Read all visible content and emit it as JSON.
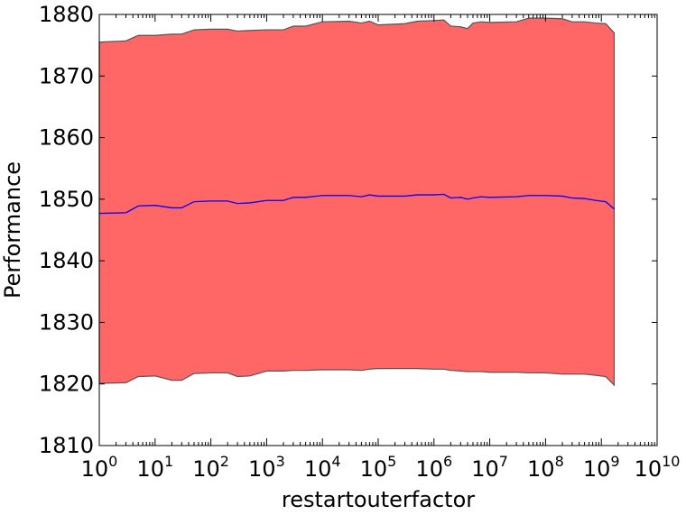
{
  "chart_data": {
    "type": "area",
    "xlabel": "restartouterfactor",
    "ylabel": "Performance",
    "x_scale": "log",
    "xlim": [
      1,
      10000000000
    ],
    "ylim": [
      1810,
      1880
    ],
    "x_ticks": [
      {
        "base": "10",
        "exp": "0"
      },
      {
        "base": "10",
        "exp": "1"
      },
      {
        "base": "10",
        "exp": "2"
      },
      {
        "base": "10",
        "exp": "3"
      },
      {
        "base": "10",
        "exp": "4"
      },
      {
        "base": "10",
        "exp": "5"
      },
      {
        "base": "10",
        "exp": "6"
      },
      {
        "base": "10",
        "exp": "7"
      },
      {
        "base": "10",
        "exp": "8"
      },
      {
        "base": "10",
        "exp": "9"
      },
      {
        "base": "10",
        "exp": "10"
      }
    ],
    "y_ticks": [
      "1810",
      "1820",
      "1830",
      "1840",
      "1850",
      "1860",
      "1870",
      "1880"
    ],
    "grid": false,
    "colors": {
      "band": "#ff6666",
      "band_edge": "#555555",
      "mean_line": "#0000ff"
    },
    "x": [
      1,
      3,
      5,
      10,
      20,
      30,
      50,
      100,
      200,
      300,
      500,
      1000,
      2000,
      3000,
      5000,
      10000,
      30000,
      50000,
      70000,
      100000,
      300000,
      500000,
      1000000,
      1500000,
      2000000,
      3000000,
      4000000,
      5000000,
      7000000,
      10000000,
      30000000,
      50000000,
      100000000,
      200000000,
      300000000,
      500000000,
      800000000,
      1200000000,
      1700000000
    ],
    "series": [
      {
        "role": "mean",
        "values": [
          1847.7,
          1847.8,
          1848.9,
          1849.0,
          1848.6,
          1848.6,
          1849.6,
          1849.7,
          1849.7,
          1849.3,
          1849.4,
          1849.8,
          1849.8,
          1850.3,
          1850.3,
          1850.6,
          1850.6,
          1850.4,
          1850.7,
          1850.5,
          1850.5,
          1850.7,
          1850.7,
          1850.8,
          1850.2,
          1850.3,
          1850.0,
          1850.2,
          1850.4,
          1850.3,
          1850.4,
          1850.6,
          1850.6,
          1850.5,
          1850.2,
          1850.1,
          1849.8,
          1849.6,
          1848.4
        ]
      },
      {
        "role": "upper",
        "values": [
          1875.5,
          1875.7,
          1876.6,
          1876.6,
          1876.8,
          1876.8,
          1877.5,
          1877.6,
          1877.6,
          1877.3,
          1877.4,
          1877.5,
          1877.5,
          1878.1,
          1878.1,
          1878.8,
          1878.9,
          1878.6,
          1878.9,
          1878.3,
          1878.5,
          1878.9,
          1879.0,
          1879.1,
          1878.1,
          1878.0,
          1877.7,
          1878.6,
          1878.8,
          1878.7,
          1878.8,
          1879.4,
          1879.4,
          1879.3,
          1878.8,
          1878.8,
          1878.6,
          1878.5,
          1877.0
        ]
      },
      {
        "role": "lower",
        "values": [
          1820.1,
          1820.2,
          1821.2,
          1821.3,
          1820.6,
          1820.6,
          1821.7,
          1821.8,
          1821.8,
          1821.2,
          1821.3,
          1822.1,
          1822.1,
          1822.2,
          1822.2,
          1822.3,
          1822.3,
          1822.2,
          1822.4,
          1822.5,
          1822.5,
          1822.5,
          1822.4,
          1822.4,
          1822.2,
          1822.1,
          1822.0,
          1822.0,
          1822.0,
          1821.9,
          1821.9,
          1821.8,
          1821.8,
          1821.6,
          1821.6,
          1821.6,
          1821.4,
          1821.2,
          1819.8
        ]
      }
    ]
  }
}
